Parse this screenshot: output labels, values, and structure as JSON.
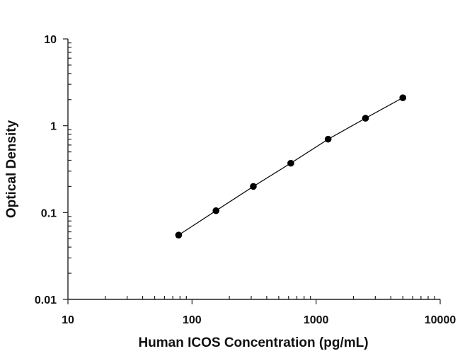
{
  "chart_data": {
    "type": "scatter",
    "xlabel": "Human ICOS Concentration (pg/mL)",
    "ylabel": "Optical Density",
    "xscale": "log",
    "yscale": "log",
    "xlim": [
      10,
      10000
    ],
    "ylim": [
      0.01,
      10
    ],
    "x_tick_labels": [
      "10",
      "100",
      "1000",
      "10000"
    ],
    "y_tick_labels": [
      "0.01",
      "0.1",
      "1",
      "10"
    ],
    "grid": false,
    "legend": "none",
    "fit_line": true,
    "series": [
      {
        "x": [
          78,
          156,
          312,
          625,
          1250,
          2500,
          5000
        ],
        "y": [
          0.055,
          0.105,
          0.2,
          0.37,
          0.7,
          1.22,
          2.1
        ]
      }
    ],
    "colors": {
      "points": "#000000",
      "line": "#111111",
      "axes": "#222222"
    }
  }
}
